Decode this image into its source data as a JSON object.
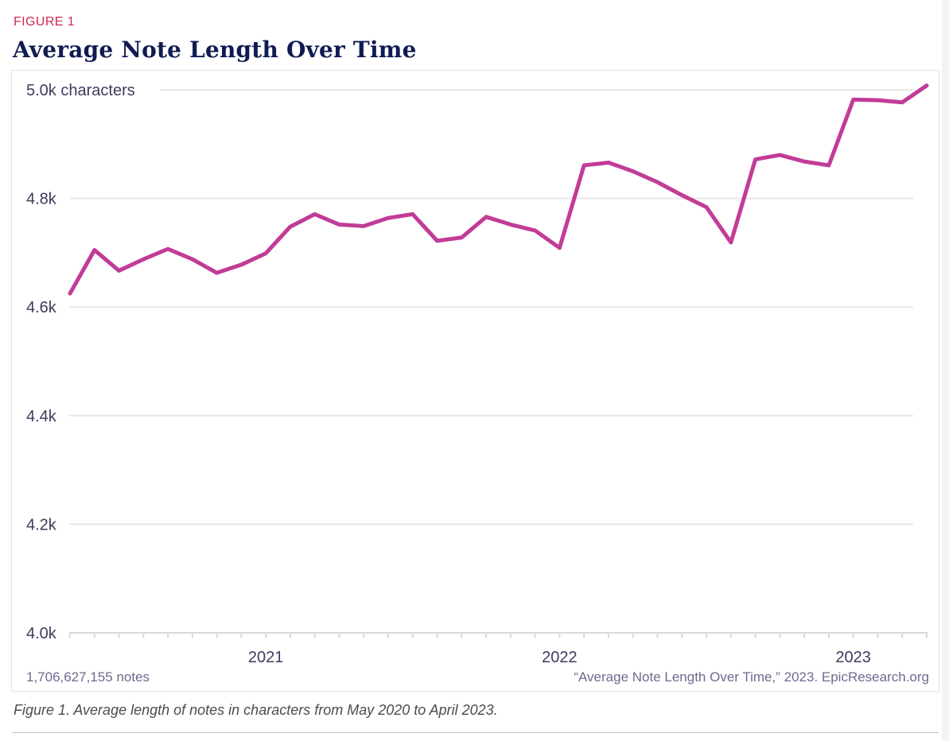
{
  "header": {
    "figure_label": "FIGURE 1",
    "title": "Average Note Length Over Time"
  },
  "footer": {
    "notes_count": "1,706,627,155 notes",
    "source": "“Average Note Length Over Time,” 2023. EpicResearch.org"
  },
  "caption": {
    "text": "Figure 1. Average length of notes in characters from May 2020 to April 2023."
  },
  "colors": {
    "accent_red": "#d2294b",
    "title_navy": "#101b52",
    "line_magenta": "#c13c97",
    "axis_text": "#3c3c5e",
    "muted_text": "#6b6b8f",
    "gridline": "#e7e7e7",
    "axis_line": "#d9d9d9"
  },
  "chart_data": {
    "type": "line",
    "title": "Average Note Length Over Time",
    "ylabel": "characters",
    "xlabel": "",
    "x_range": [
      "May 2020",
      "Apr 2023"
    ],
    "ylim": [
      4000,
      5000
    ],
    "grid": "horizontal",
    "legend": "none",
    "line_color": "#c13c97",
    "months": [
      "May 2020",
      "Jun 2020",
      "Jul 2020",
      "Aug 2020",
      "Sep 2020",
      "Oct 2020",
      "Nov 2020",
      "Dec 2020",
      "Jan 2021",
      "Feb 2021",
      "Mar 2021",
      "Apr 2021",
      "May 2021",
      "Jun 2021",
      "Jul 2021",
      "Aug 2021",
      "Sep 2021",
      "Oct 2021",
      "Nov 2021",
      "Dec 2021",
      "Jan 2022",
      "Feb 2022",
      "Mar 2022",
      "Apr 2022",
      "May 2022",
      "Jun 2022",
      "Jul 2022",
      "Aug 2022",
      "Sep 2022",
      "Oct 2022",
      "Nov 2022",
      "Dec 2022",
      "Jan 2023",
      "Feb 2023",
      "Mar 2023",
      "Apr 2023"
    ],
    "values_chars": [
      4625,
      4705,
      4667,
      4688,
      4707,
      4688,
      4663,
      4678,
      4699,
      4748,
      4771,
      4752,
      4749,
      4764,
      4771,
      4722,
      4728,
      4766,
      4752,
      4741,
      4709,
      4861,
      4866,
      4850,
      4830,
      4806,
      4784,
      4719,
      4872,
      4880,
      4868,
      4861,
      4982,
      4981,
      4977,
      5008
    ],
    "y_axis": [
      {
        "label": "5.0k characters",
        "value": 5000
      },
      {
        "label": "4.8k",
        "value": 4800
      },
      {
        "label": "4.6k",
        "value": 4600
      },
      {
        "label": "4.4k",
        "value": 4400
      },
      {
        "label": "4.2k",
        "value": 4200
      },
      {
        "label": "4.0k",
        "value": 4000
      }
    ],
    "year_ticks": [
      {
        "label": "2021",
        "index": 8
      },
      {
        "label": "2022",
        "index": 20
      },
      {
        "label": "2023",
        "index": 32
      }
    ]
  }
}
